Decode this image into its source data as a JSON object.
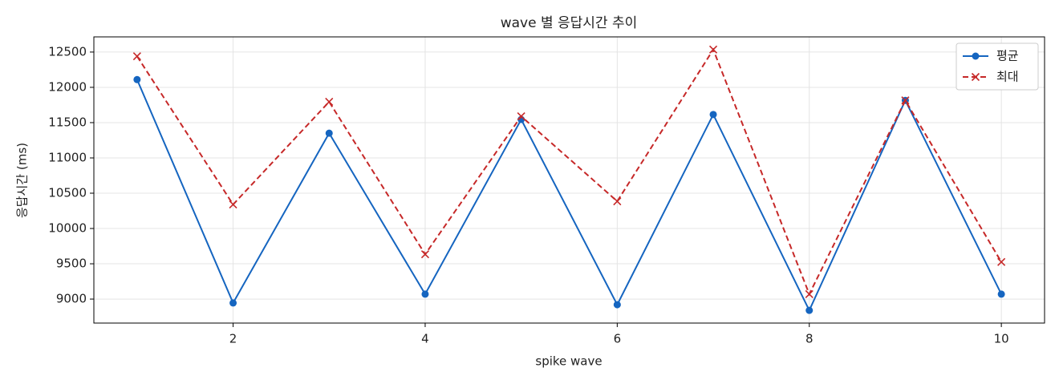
{
  "chart_data": {
    "type": "line",
    "title": "wave 별 응답시간 추이",
    "xlabel": "spike wave",
    "ylabel": "응답시간 (ms)",
    "x": [
      1,
      2,
      3,
      4,
      5,
      6,
      7,
      8,
      9,
      10
    ],
    "series": [
      {
        "name": "평균",
        "color": "#1565c0",
        "marker": "o",
        "linestyle": "solid",
        "values": [
          12110,
          8945,
          11350,
          9070,
          11545,
          8920,
          11615,
          8840,
          11815,
          9070
        ]
      },
      {
        "name": "최대",
        "color": "#c62828",
        "marker": "x",
        "linestyle": "dashed",
        "values": [
          12440,
          10340,
          11795,
          9635,
          11590,
          10385,
          12535,
          9070,
          11815,
          9525
        ]
      }
    ],
    "xlim": [
      0.55,
      10.45
    ],
    "xticks": [
      2,
      4,
      6,
      8,
      10
    ],
    "ylim": [
      8660,
      12715
    ],
    "yticks": [
      9000,
      9500,
      10000,
      10500,
      11000,
      11500,
      12000,
      12500
    ],
    "grid": true,
    "legend": "upper right"
  }
}
